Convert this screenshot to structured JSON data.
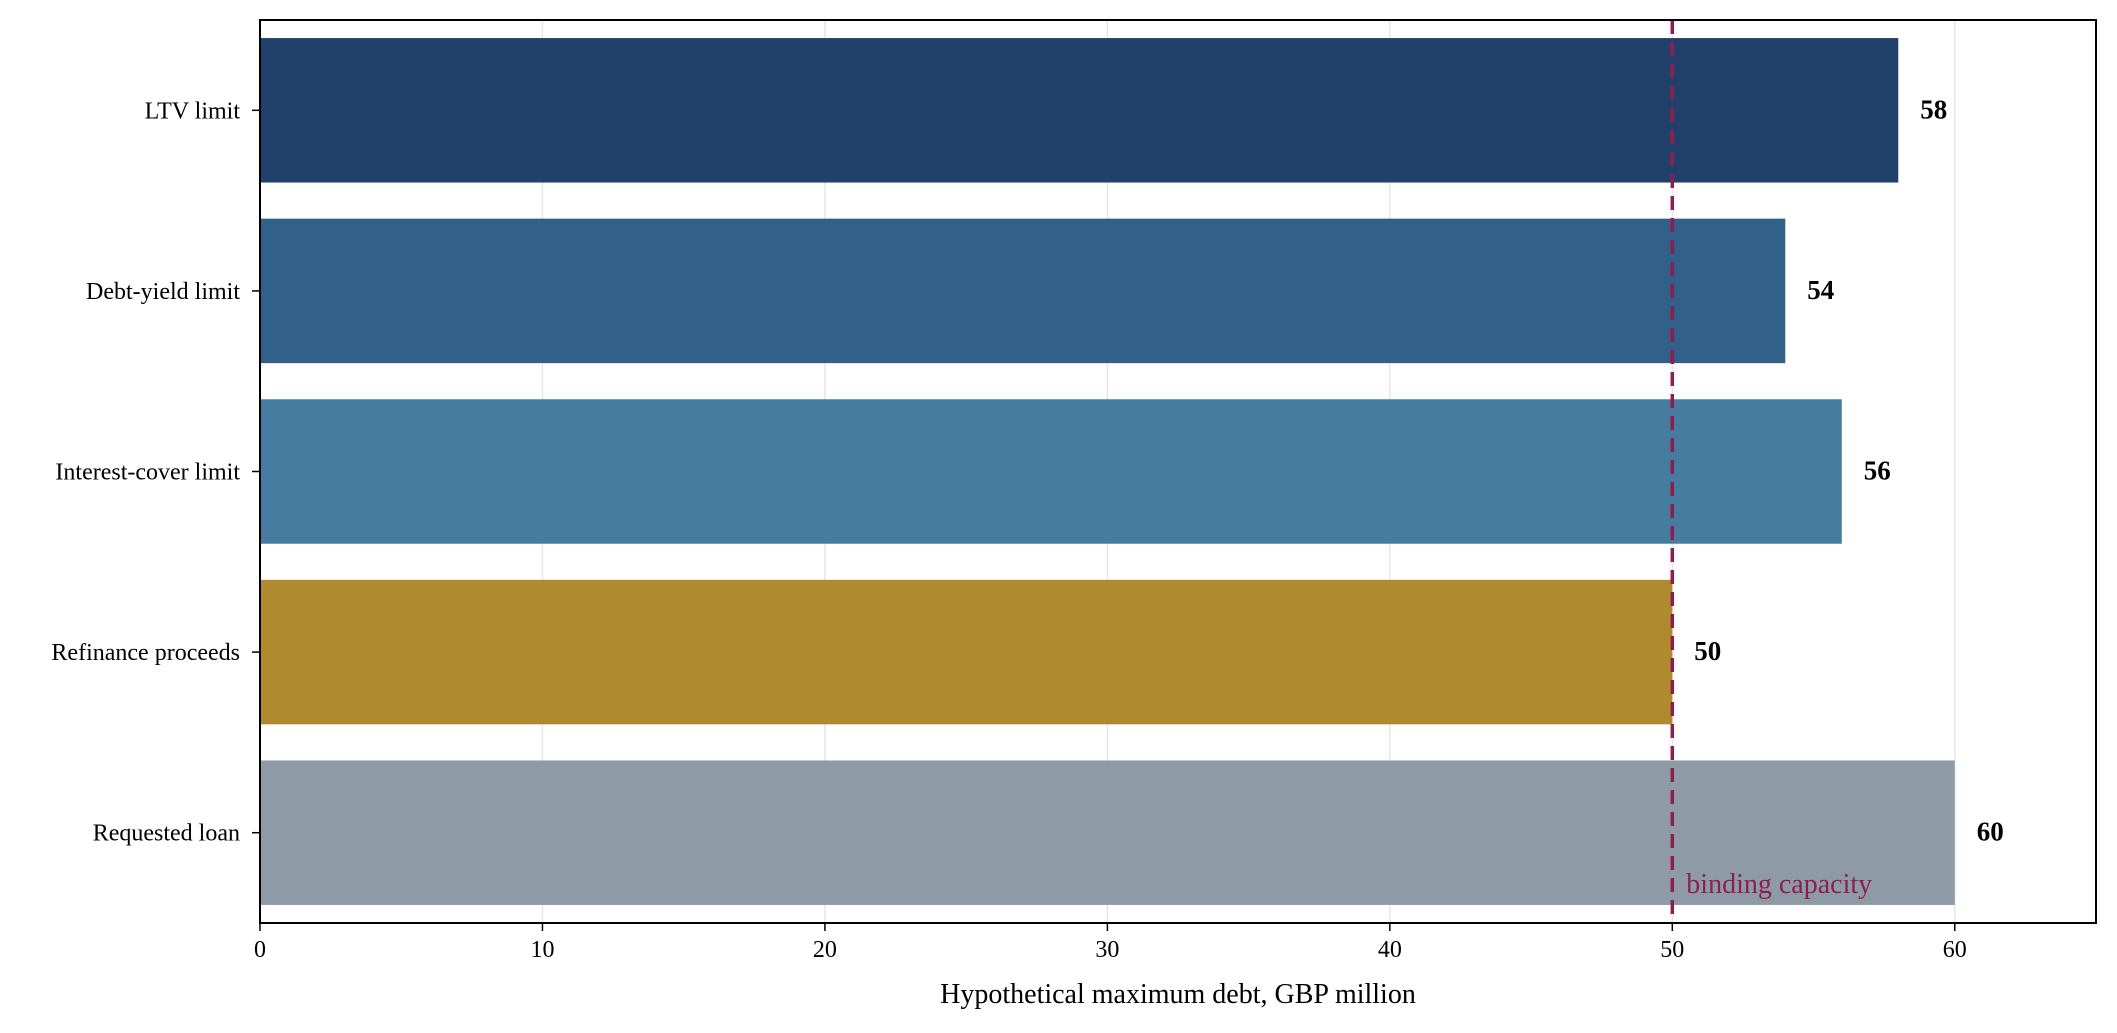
{
  "chart_data": {
    "type": "bar",
    "orientation": "horizontal",
    "title": "",
    "xlabel": "Hypothetical maximum debt, GBP million",
    "ylabel": "",
    "xlim": [
      0,
      65
    ],
    "xticks": [
      0,
      10,
      20,
      30,
      40,
      50,
      60
    ],
    "grid": "vertical",
    "categories": [
      "LTV limit",
      "Debt-yield limit",
      "Interest-cover limit",
      "Refinance proceeds",
      "Requested loan"
    ],
    "values": [
      58,
      54,
      56,
      50,
      60
    ],
    "value_labels": [
      "58",
      "54",
      "56",
      "50",
      "60"
    ],
    "colors": [
      "#21416a",
      "#316089",
      "#467ca0",
      "#b08a2f",
      "#8e9ba7"
    ],
    "reference_line": {
      "value": 50,
      "label": "binding capacity",
      "color": "#8c1f4e",
      "style": "dashed"
    }
  }
}
